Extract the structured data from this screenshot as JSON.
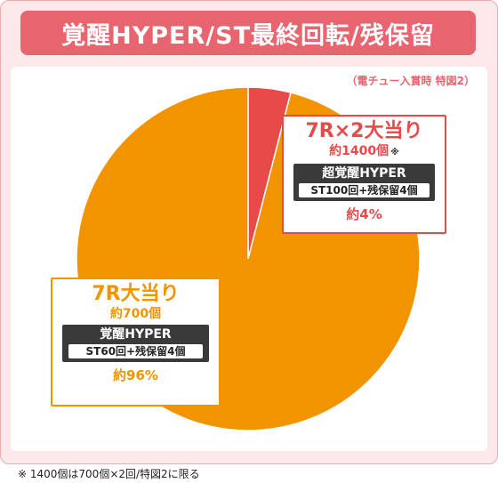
{
  "header": {
    "title": "覚醒HYPER/ST最終回転/残保留"
  },
  "note": "（電チュー入賞時 特図2）",
  "footnote": "※ 1400個は700個×2回/特図2に限る",
  "colors": {
    "small_slice": "#e84a4a",
    "large_slice": "#f29400",
    "accent": "#e8646f"
  },
  "chart_data": {
    "type": "pie",
    "slices": [
      {
        "label": "7R×2大当り",
        "sub": "約1400個",
        "marker": "※",
        "mode": "超覚醒HYPER",
        "detail": "ST100回+残保留4個",
        "percent_label": "約4%",
        "value": 4
      },
      {
        "label": "7R大当り",
        "sub": "約700個",
        "mode": "覚醒HYPER",
        "detail": "ST60回+残保留4個",
        "percent_label": "約96%",
        "value": 96
      }
    ]
  }
}
